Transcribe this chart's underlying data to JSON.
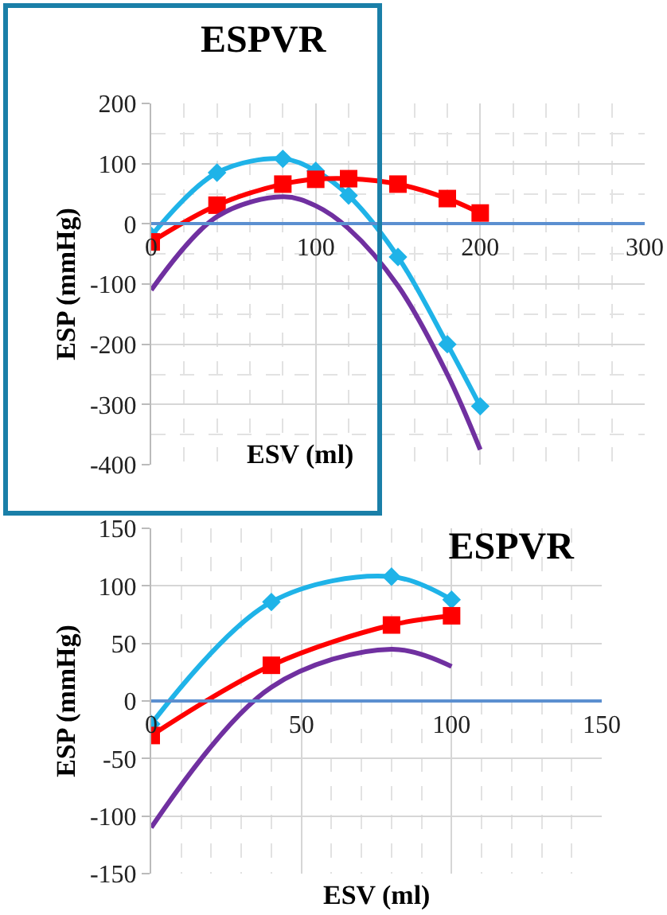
{
  "chart_data": [
    {
      "type": "line",
      "title": "ESPVR",
      "xlabel": "ESV (ml)",
      "ylabel": "ESP (mmHg)",
      "x": [
        0,
        40,
        80,
        100,
        120,
        150,
        180,
        200
      ],
      "series": [
        {
          "color": "#1fb3e8",
          "marker": "diamond",
          "values": [
            -20,
            85,
            108,
            88,
            47,
            -55,
            -200,
            -303
          ]
        },
        {
          "color": "#ff0000",
          "marker": "square",
          "values": [
            -30,
            31,
            66,
            74,
            75,
            66,
            42,
            18
          ]
        },
        {
          "color": "#7030a0",
          "marker": "none",
          "values": [
            -110,
            12,
            45,
            30,
            -8,
            -103,
            -250,
            -375
          ]
        }
      ],
      "xlim": [
        0,
        300
      ],
      "ylim": [
        -400,
        200
      ],
      "xticks": [
        0,
        100,
        200,
        300
      ],
      "yticks": [
        -400,
        -300,
        -200,
        -100,
        0,
        100,
        200
      ],
      "grid": true
    },
    {
      "type": "line",
      "title": "ESPVR",
      "xlabel": "ESV (ml)",
      "ylabel": "ESP (mmHg)",
      "x": [
        0,
        40,
        80,
        100
      ],
      "series": [
        {
          "color": "#1fb3e8",
          "marker": "diamond",
          "values": [
            -20,
            86,
            108,
            88
          ]
        },
        {
          "color": "#ff0000",
          "marker": "square",
          "values": [
            -30,
            31,
            66,
            74
          ]
        },
        {
          "color": "#7030a0",
          "marker": "none",
          "values": [
            -110,
            12,
            45,
            30
          ]
        }
      ],
      "xlim": [
        0,
        150
      ],
      "ylim": [
        -150,
        150
      ],
      "xticks": [
        0,
        50,
        100,
        150
      ],
      "yticks": [
        -150,
        -100,
        -50,
        0,
        50,
        100,
        150
      ],
      "grid": true
    }
  ]
}
